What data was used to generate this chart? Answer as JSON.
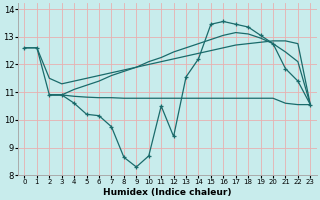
{
  "xlabel": "Humidex (Indice chaleur)",
  "bg_color": "#c8ecec",
  "grid_color": "#e8b0b0",
  "line_color": "#1a6b6b",
  "xlim": [
    -0.5,
    23.5
  ],
  "ylim": [
    8,
    14.2
  ],
  "xticks": [
    0,
    1,
    2,
    3,
    4,
    5,
    6,
    7,
    8,
    9,
    10,
    11,
    12,
    13,
    14,
    15,
    16,
    17,
    18,
    19,
    20,
    21,
    22,
    23
  ],
  "yticks": [
    8,
    9,
    10,
    11,
    12,
    13,
    14
  ],
  "series": [
    {
      "x": [
        0,
        1,
        2,
        3,
        4,
        5,
        6,
        7,
        8,
        9,
        10,
        11,
        12,
        13,
        14,
        15,
        16,
        17,
        18,
        19,
        20,
        21,
        22,
        23
      ],
      "y": [
        12.6,
        12.6,
        10.9,
        10.9,
        10.6,
        10.2,
        10.15,
        9.75,
        8.65,
        8.3,
        8.7,
        10.5,
        9.4,
        11.55,
        12.2,
        13.45,
        13.55,
        13.45,
        13.35,
        13.05,
        12.75,
        11.85,
        11.4,
        10.55
      ],
      "marker": true
    },
    {
      "x": [
        0,
        1,
        2,
        3,
        4,
        5,
        6,
        7,
        8,
        9,
        10,
        11,
        12,
        13,
        14,
        15,
        16,
        17,
        18,
        19,
        20,
        21,
        22,
        23
      ],
      "y": [
        12.6,
        12.6,
        11.5,
        11.3,
        11.4,
        11.5,
        11.6,
        11.7,
        11.8,
        11.9,
        12.0,
        12.1,
        12.2,
        12.3,
        12.4,
        12.5,
        12.6,
        12.7,
        12.75,
        12.8,
        12.85,
        12.85,
        12.75,
        10.55
      ],
      "marker": false
    },
    {
      "x": [
        2,
        3,
        4,
        5,
        6,
        7,
        8,
        9,
        10,
        11,
        12,
        13,
        14,
        15,
        16,
        17,
        18,
        19,
        20,
        21,
        22,
        23
      ],
      "y": [
        10.9,
        10.9,
        11.1,
        11.25,
        11.4,
        11.6,
        11.75,
        11.9,
        12.1,
        12.25,
        12.45,
        12.6,
        12.75,
        12.9,
        13.05,
        13.15,
        13.1,
        12.95,
        12.75,
        12.45,
        12.1,
        10.55
      ],
      "marker": false
    },
    {
      "x": [
        2,
        3,
        4,
        5,
        6,
        7,
        8,
        9,
        10,
        11,
        12,
        13,
        14,
        15,
        16,
        17,
        18,
        19,
        20,
        21,
        22,
        23
      ],
      "y": [
        10.9,
        10.9,
        10.85,
        10.82,
        10.8,
        10.8,
        10.78,
        10.78,
        10.78,
        10.78,
        10.78,
        10.78,
        10.78,
        10.78,
        10.78,
        10.78,
        10.78,
        10.78,
        10.78,
        10.6,
        10.55,
        10.55
      ],
      "marker": false
    }
  ]
}
